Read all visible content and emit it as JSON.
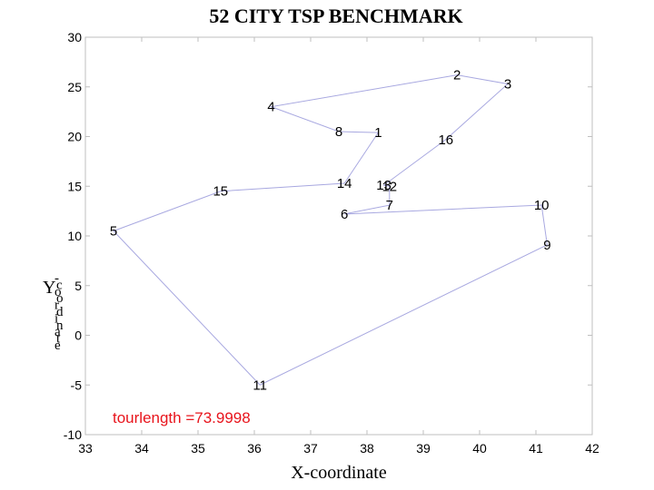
{
  "chart_data": {
    "type": "line",
    "title": "52 CITY TSP BENCHMARK",
    "xlabel": "X-coordinate",
    "ylabel": "Y-coordinate",
    "xlim": [
      33,
      42
    ],
    "ylim": [
      -10,
      30
    ],
    "xticks": [
      33,
      34,
      35,
      36,
      37,
      38,
      39,
      40,
      41,
      42
    ],
    "yticks": [
      -10,
      -5,
      0,
      5,
      10,
      15,
      20,
      25,
      30
    ],
    "grid": false,
    "line_color": "#a8a8e0",
    "annotation_color": "#e8141c",
    "cities": [
      {
        "label": "1",
        "x": 38.2,
        "y": 20.4
      },
      {
        "label": "2",
        "x": 39.6,
        "y": 26.2
      },
      {
        "label": "3",
        "x": 40.5,
        "y": 25.3
      },
      {
        "label": "4",
        "x": 36.3,
        "y": 23.0
      },
      {
        "label": "5",
        "x": 33.5,
        "y": 10.5
      },
      {
        "label": "6",
        "x": 37.6,
        "y": 12.2
      },
      {
        "label": "7",
        "x": 38.4,
        "y": 13.1
      },
      {
        "label": "8",
        "x": 37.5,
        "y": 20.5
      },
      {
        "label": "9",
        "x": 41.2,
        "y": 9.1
      },
      {
        "label": "10",
        "x": 41.1,
        "y": 13.1
      },
      {
        "label": "11",
        "x": 36.1,
        "y": -5.0
      },
      {
        "label": "12",
        "x": 38.4,
        "y": 15.0
      },
      {
        "label": "13",
        "x": 38.3,
        "y": 15.1
      },
      {
        "label": "14",
        "x": 37.6,
        "y": 15.3
      },
      {
        "label": "15",
        "x": 35.4,
        "y": 14.5
      },
      {
        "label": "16",
        "x": 39.4,
        "y": 19.7
      }
    ],
    "tour": [
      "1",
      "8",
      "4",
      "2",
      "3",
      "16",
      "13",
      "12",
      "7",
      "6",
      "10",
      "9",
      "11",
      "5",
      "15",
      "14",
      "1"
    ],
    "annotation": "tourlength =73.9998"
  }
}
